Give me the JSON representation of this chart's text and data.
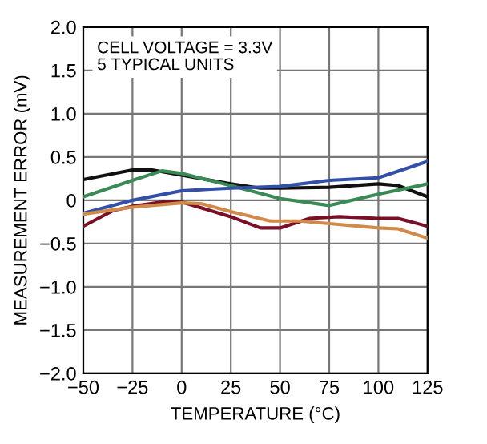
{
  "chart_data": {
    "type": "line",
    "xlabel": "TEMPERATURE (°C)",
    "ylabel": "MEASUREMENT ERROR (mV)",
    "annotations": [
      "CELL VOLTAGE = 3.3V\n5 TYPICAL UNITS"
    ],
    "xlim": [
      -50,
      125
    ],
    "ylim": [
      -2.0,
      2.0
    ],
    "xticks": [
      {
        "value": -50,
        "label": "−50"
      },
      {
        "value": -25,
        "label": "−25"
      },
      0,
      25,
      50,
      75,
      100,
      125
    ],
    "yticks": [
      {
        "value": -2.0,
        "label": "−2.0"
      },
      {
        "value": -1.5,
        "label": "−1.5"
      },
      {
        "value": -1.0,
        "label": "−1.0"
      },
      {
        "value": -0.5,
        "label": "−0.5"
      },
      0,
      0.5,
      {
        "value": 1.0,
        "label": "1.0"
      },
      1.5,
      {
        "value": 2.0,
        "label": "2.0"
      }
    ],
    "grid": true,
    "line_style": "solid",
    "marker": "none",
    "series": [
      {
        "color": "#111111",
        "x": [
          -50,
          -25,
          -15,
          0,
          25,
          40,
          50,
          75,
          100,
          110,
          125
        ],
        "values": [
          0.24,
          0.35,
          0.35,
          0.29,
          0.19,
          0.14,
          0.14,
          0.15,
          0.19,
          0.17,
          0.04
        ]
      },
      {
        "color": "#3a8a55",
        "x": [
          -50,
          -25,
          -10,
          0,
          25,
          50,
          75,
          100,
          125
        ],
        "values": [
          0.04,
          0.23,
          0.34,
          0.31,
          0.17,
          0.02,
          -0.06,
          0.07,
          0.19
        ]
      },
      {
        "color": "#3350a8",
        "x": [
          -50,
          -25,
          0,
          25,
          50,
          75,
          100,
          125
        ],
        "values": [
          -0.15,
          0.0,
          0.11,
          0.14,
          0.16,
          0.23,
          0.26,
          0.45
        ]
      },
      {
        "color": "#7a1028",
        "x": [
          -50,
          -35,
          -25,
          -10,
          0,
          25,
          40,
          50,
          65,
          80,
          100,
          110,
          125
        ],
        "values": [
          -0.3,
          -0.12,
          -0.07,
          -0.02,
          -0.02,
          -0.19,
          -0.32,
          -0.32,
          -0.21,
          -0.19,
          -0.21,
          -0.21,
          -0.3
        ]
      },
      {
        "color": "#d08a4a",
        "x": [
          -50,
          -25,
          0,
          10,
          25,
          45,
          60,
          75,
          100,
          110,
          125
        ],
        "values": [
          -0.16,
          -0.08,
          -0.03,
          -0.04,
          -0.13,
          -0.24,
          -0.24,
          -0.27,
          -0.32,
          -0.33,
          -0.44
        ]
      }
    ]
  }
}
